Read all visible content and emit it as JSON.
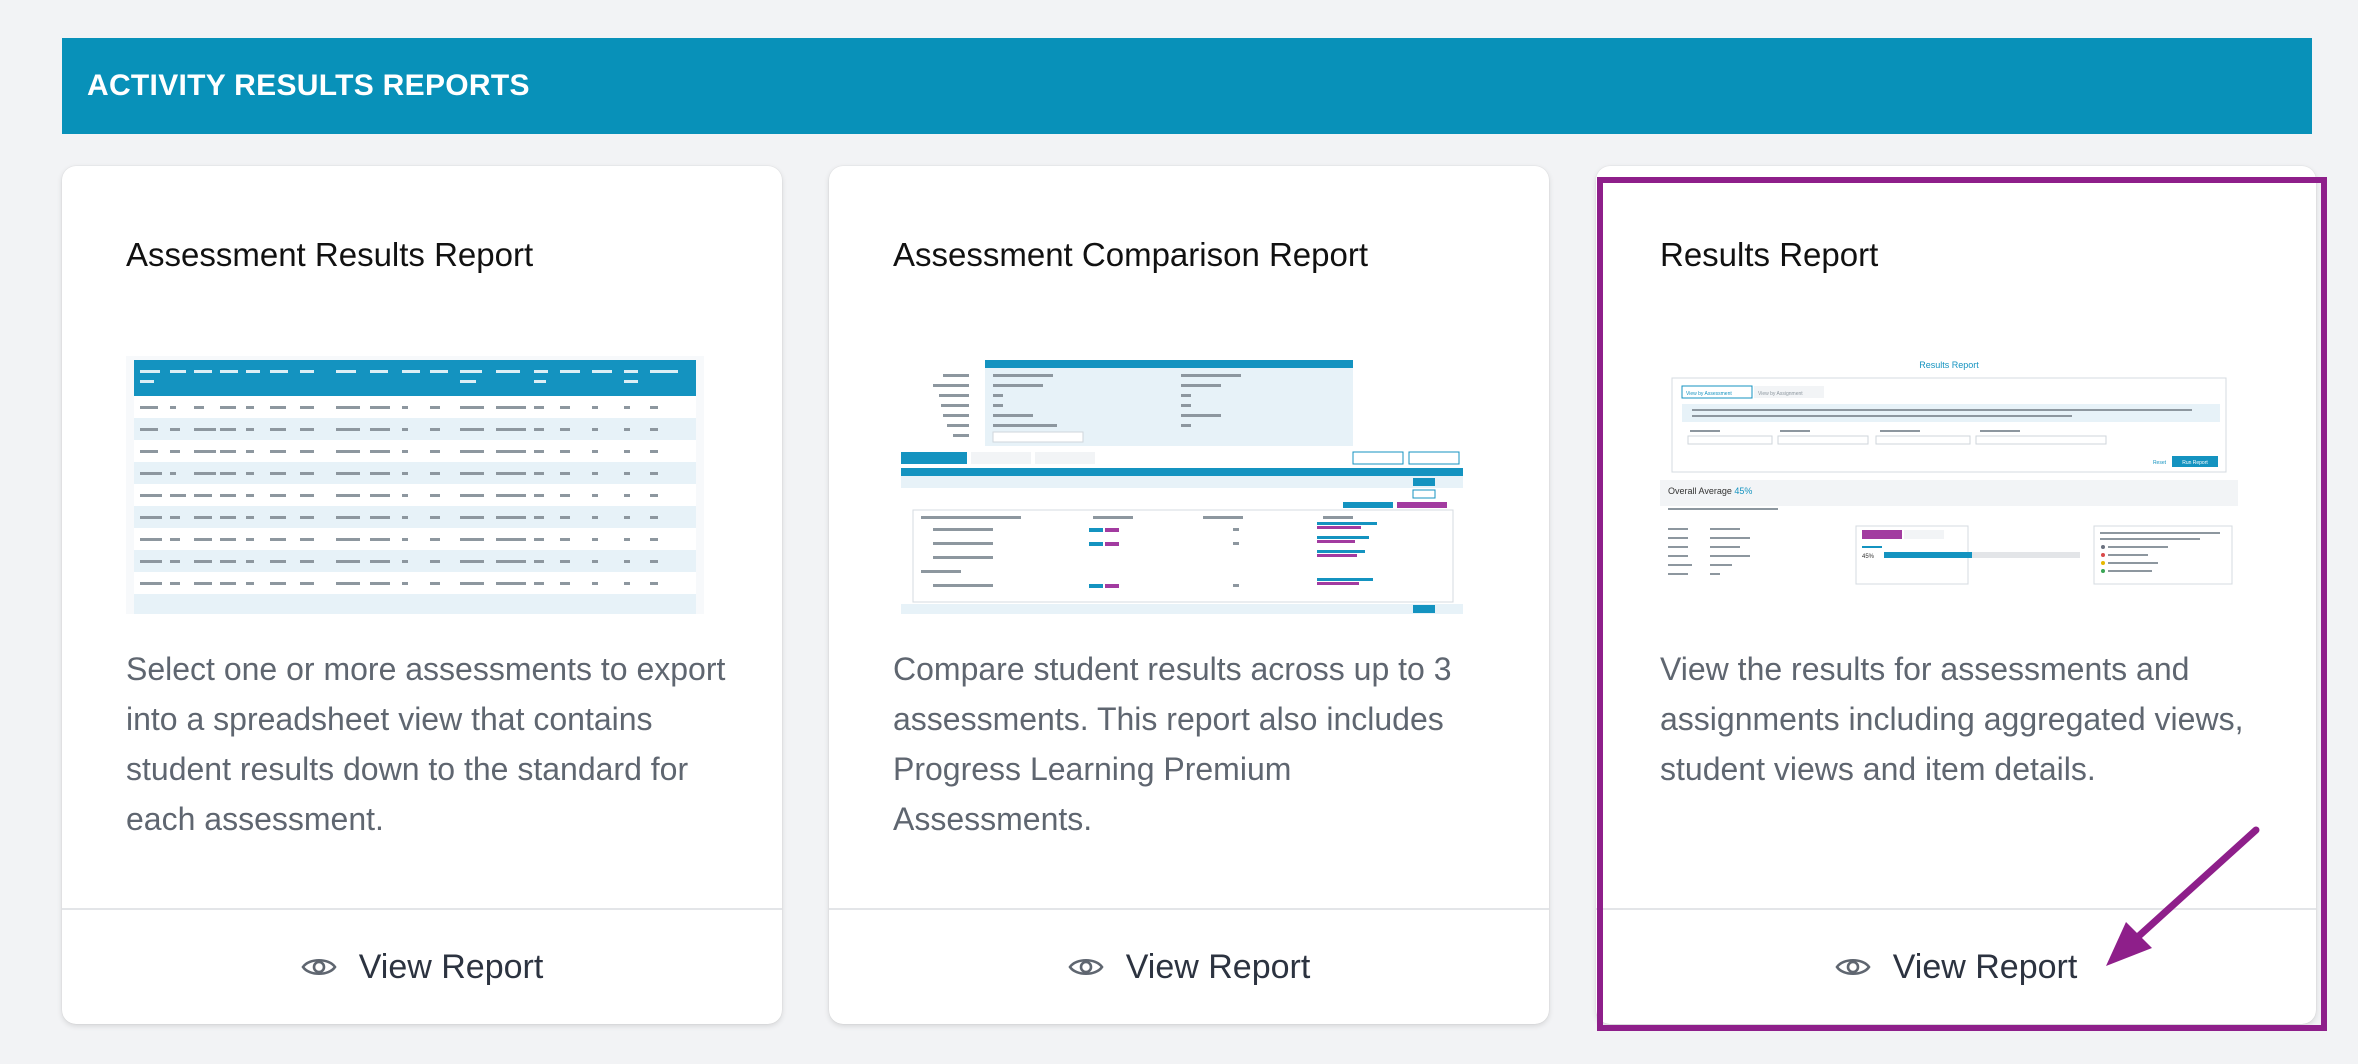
{
  "section": {
    "title": "ACTIVITY RESULTS REPORTS"
  },
  "cards": [
    {
      "title": "Assessment Results Report",
      "description": "Select one or more assessments to export into a spreadsheet view that contains student results down to the standard for each assessment.",
      "action_label": "View Report"
    },
    {
      "title": "Assessment Comparison Report",
      "description": "Compare student results across up to 3 assessments. This report also includes Progress Learning Premium Assessments.",
      "action_label": "View Report"
    },
    {
      "title": "Results Report",
      "description": "View the results for assessments and assignments including aggregated views, student views and item details.",
      "action_label": "View Report"
    }
  ],
  "thumbnail_3": {
    "heading": "Results Report",
    "tab_1": "View by Assessment",
    "tab_2": "View by Assignment",
    "overall_label": "Overall Average",
    "overall_value": "45%",
    "run_button": "Run Report",
    "reset_button": "Reset",
    "score_value": "45%"
  },
  "colors": {
    "header_bg": "#0891b9",
    "highlight": "#8e1f8a",
    "table_header": "#1493c0"
  },
  "icons": {
    "view": "eye-icon",
    "annotation": "arrow-icon"
  }
}
